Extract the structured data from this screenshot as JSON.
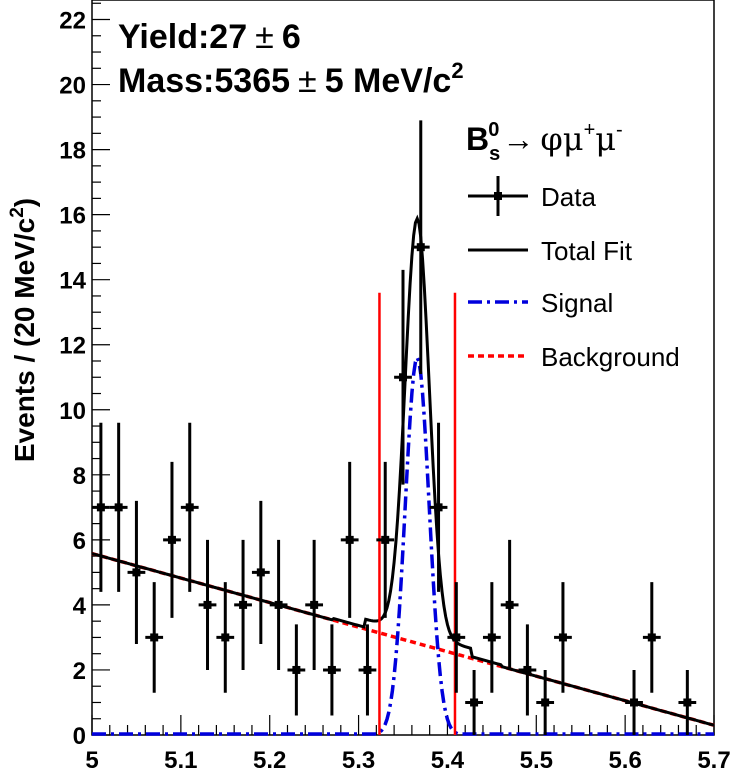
{
  "chart_data": {
    "type": "histogram-fit",
    "title": "",
    "xlabel": "",
    "ylabel": "Events / (20 MeV/c",
    "ylabel_sup": "2",
    "ylabel_close": ")",
    "xlim": [
      5.0,
      5.7
    ],
    "ylim": [
      0,
      22.6
    ],
    "x_ticks": [
      "5",
      "5.1",
      "5.2",
      "5.3",
      "5.4",
      "5.5",
      "5.6",
      "5.7"
    ],
    "y_ticks": [
      "0",
      "2",
      "4",
      "6",
      "8",
      "10",
      "12",
      "14",
      "16",
      "18",
      "20",
      "22"
    ],
    "annotations": {
      "yield_label": "Yield:27",
      "yield_pm": "±",
      "yield_err": "6",
      "mass_label": "Mass:5365",
      "mass_pm": "±",
      "mass_err": "5 MeV/c",
      "mass_sup": "2"
    },
    "process": {
      "B": "B",
      "sub": "s",
      "sup": "0",
      "arrow": "→",
      "final": "φμ",
      "plus": "+",
      "mu": "μ",
      "minus": "-"
    },
    "legend": [
      {
        "name": "Data",
        "style": "marker"
      },
      {
        "name": "Total Fit",
        "style": "solid-black"
      },
      {
        "name": "Signal",
        "style": "dashdot-blue"
      },
      {
        "name": "Background",
        "style": "dashed-red"
      }
    ],
    "data_points": [
      {
        "x": 5.01,
        "y": 7,
        "err": 2.6
      },
      {
        "x": 5.03,
        "y": 7,
        "err": 2.6
      },
      {
        "x": 5.05,
        "y": 5,
        "err": 2.2
      },
      {
        "x": 5.07,
        "y": 3,
        "err": 1.7
      },
      {
        "x": 5.09,
        "y": 6,
        "err": 2.4
      },
      {
        "x": 5.11,
        "y": 7,
        "err": 2.6
      },
      {
        "x": 5.13,
        "y": 4,
        "err": 2.0
      },
      {
        "x": 5.15,
        "y": 3,
        "err": 1.7
      },
      {
        "x": 5.17,
        "y": 4,
        "err": 2.0
      },
      {
        "x": 5.19,
        "y": 5,
        "err": 2.2
      },
      {
        "x": 5.21,
        "y": 4,
        "err": 2.0
      },
      {
        "x": 5.23,
        "y": 2,
        "err": 1.4
      },
      {
        "x": 5.25,
        "y": 4,
        "err": 2.0
      },
      {
        "x": 5.27,
        "y": 2,
        "err": 1.4
      },
      {
        "x": 5.29,
        "y": 6,
        "err": 2.4
      },
      {
        "x": 5.31,
        "y": 2,
        "err": 1.4
      },
      {
        "x": 5.33,
        "y": 6,
        "err": 2.4
      },
      {
        "x": 5.35,
        "y": 11,
        "err": 3.3
      },
      {
        "x": 5.37,
        "y": 15,
        "err": 3.9
      },
      {
        "x": 5.39,
        "y": 7,
        "err": 2.6
      },
      {
        "x": 5.41,
        "y": 3,
        "err": 1.7
      },
      {
        "x": 5.43,
        "y": 1,
        "err": 1.0
      },
      {
        "x": 5.45,
        "y": 3,
        "err": 1.7
      },
      {
        "x": 5.47,
        "y": 4,
        "err": 2.0
      },
      {
        "x": 5.49,
        "y": 2,
        "err": 1.4
      },
      {
        "x": 5.51,
        "y": 1,
        "err": 1.0
      },
      {
        "x": 5.53,
        "y": 3,
        "err": 1.7
      },
      {
        "x": 5.61,
        "y": 1,
        "err": 1.0
      },
      {
        "x": 5.63,
        "y": 3,
        "err": 1.7
      },
      {
        "x": 5.67,
        "y": 1,
        "err": 1.0
      }
    ],
    "bin_half_width": 0.01,
    "fit": {
      "signal_mean": 5.366,
      "signal_sigma": 0.0135,
      "signal_peak": 11.6,
      "background_start": [
        5.0,
        5.58
      ],
      "background_end": [
        5.7,
        0.3
      ],
      "total_offset": 0.2
    },
    "signal_window": [
      5.3235,
      5.4085
    ],
    "colors": {
      "data": "#000000",
      "total_fit": "#000000",
      "signal": "#0000dd",
      "background": "#ff0000",
      "window": "#ff0000"
    }
  }
}
